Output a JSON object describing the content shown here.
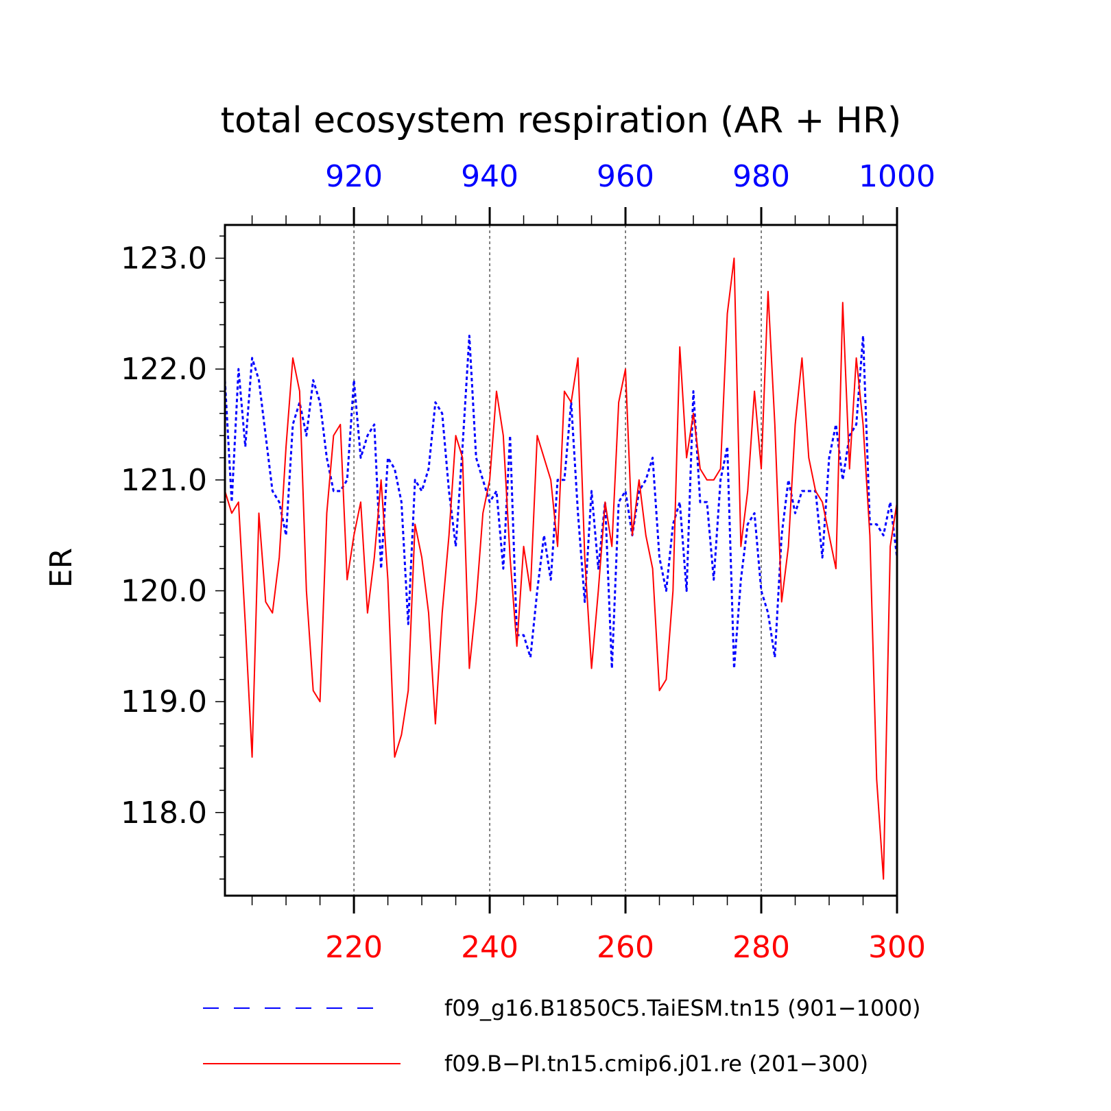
{
  "chart_data": {
    "type": "line",
    "title": "total ecosystem respiration (AR + HR)",
    "ylabel": "ER",
    "xlabel": "",
    "ylim": [
      117.25,
      123.3
    ],
    "yticks": [
      "123.0",
      "122.0",
      "121.0",
      "120.0",
      "119.0",
      "118.0"
    ],
    "ytick_values": [
      123,
      122,
      121,
      120,
      119,
      118
    ],
    "grid": "dashed vertical at labeled x ticks",
    "x_bottom": {
      "range": [
        201,
        300
      ],
      "ticks": [
        "220",
        "240",
        "260",
        "280",
        "300"
      ],
      "tick_values": [
        220,
        240,
        260,
        280,
        300
      ],
      "color": "#ff0000"
    },
    "x_top": {
      "range": [
        901,
        1000
      ],
      "ticks": [
        "920",
        "940",
        "960",
        "980",
        "1000"
      ],
      "tick_values": [
        920,
        940,
        960,
        980,
        1000
      ],
      "color": "#0000ff"
    },
    "legend_position": "bottom",
    "series": [
      {
        "name": "f09_g16.B1850C5.TaiESM.tn15 (901−1000)",
        "axis": "top",
        "color": "#0000ff",
        "style": "dashed",
        "x_start": 901,
        "values": [
          121.9,
          120.8,
          122.0,
          121.3,
          122.1,
          121.9,
          121.4,
          120.9,
          120.8,
          120.5,
          121.5,
          121.7,
          121.4,
          121.9,
          121.7,
          121.2,
          120.9,
          120.9,
          121.0,
          121.9,
          121.2,
          121.4,
          121.5,
          120.2,
          121.2,
          121.1,
          120.8,
          119.7,
          121.0,
          120.9,
          121.1,
          121.7,
          121.6,
          120.9,
          120.4,
          121.3,
          122.3,
          121.2,
          121.0,
          120.8,
          120.9,
          120.2,
          121.4,
          119.6,
          119.6,
          119.4,
          120.0,
          120.5,
          120.1,
          121.0,
          121.0,
          121.7,
          120.7,
          119.9,
          120.9,
          120.2,
          120.8,
          119.3,
          120.8,
          120.9,
          120.5,
          120.9,
          121.0,
          121.2,
          120.3,
          120.0,
          120.6,
          120.8,
          120.0,
          121.8,
          120.8,
          120.8,
          120.1,
          121.0,
          121.3,
          119.3,
          120.1,
          120.6,
          120.7,
          120.0,
          119.8,
          119.4,
          120.5,
          121.0,
          120.7,
          120.9,
          120.9,
          120.9,
          120.3,
          121.2,
          121.5,
          121.0,
          121.4,
          121.5,
          122.3,
          120.6,
          120.6,
          120.5,
          120.8,
          120.3
        ]
      },
      {
        "name": "f09.B−PI.tn15.cmip6.j01.re (201−300)",
        "axis": "bottom",
        "color": "#ff0000",
        "style": "solid",
        "x_start": 201,
        "values": [
          120.9,
          120.7,
          120.8,
          119.7,
          118.5,
          120.7,
          119.9,
          119.8,
          120.3,
          121.3,
          122.1,
          121.8,
          120.0,
          119.1,
          119.0,
          120.7,
          121.4,
          121.5,
          120.1,
          120.5,
          120.8,
          119.8,
          120.3,
          121.0,
          120.1,
          118.5,
          118.7,
          119.1,
          120.6,
          120.3,
          119.8,
          118.8,
          119.8,
          120.5,
          121.4,
          121.2,
          119.3,
          119.9,
          120.7,
          121.0,
          121.8,
          121.4,
          120.3,
          119.5,
          120.4,
          120.0,
          121.4,
          121.2,
          121.0,
          120.4,
          121.8,
          121.7,
          122.1,
          120.3,
          119.3,
          120.0,
          120.8,
          120.4,
          121.7,
          122.0,
          120.5,
          121.0,
          120.5,
          120.2,
          119.1,
          119.2,
          120.0,
          122.2,
          121.2,
          121.6,
          121.1,
          121.0,
          121.0,
          121.1,
          122.5,
          123.0,
          120.4,
          120.9,
          121.8,
          121.1,
          122.7,
          121.5,
          119.9,
          120.4,
          121.5,
          122.1,
          121.2,
          120.9,
          120.8,
          120.5,
          120.2,
          122.6,
          121.1,
          122.1,
          121.5,
          120.5,
          118.3,
          117.4,
          120.4,
          120.8
        ]
      }
    ]
  }
}
